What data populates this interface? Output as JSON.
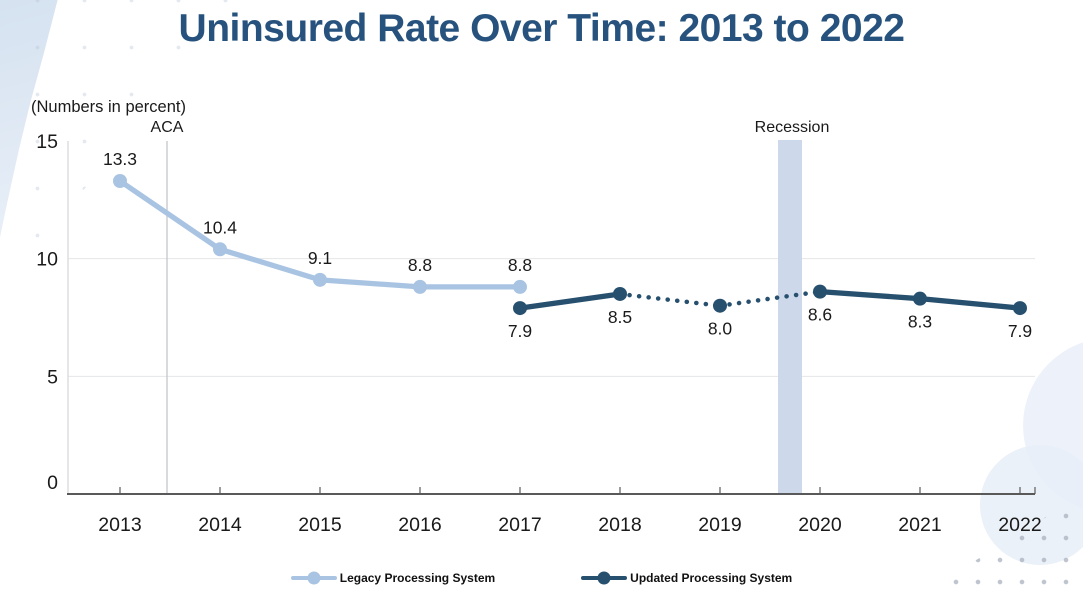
{
  "chart_data": {
    "type": "line",
    "title": "Uninsured Rate Over Time: 2013 to 2022",
    "units_note": "(Numbers in percent)",
    "x": [
      2013,
      2014,
      2015,
      2016,
      2017,
      2018,
      2019,
      2020,
      2021,
      2022
    ],
    "ylim": [
      0,
      15
    ],
    "yticks": [
      0,
      5,
      10,
      15
    ],
    "grid": "horizontal",
    "legend_position": "bottom",
    "series": [
      {
        "name": "Legacy Processing System",
        "color": "#a9c4e2",
        "x": [
          2013,
          2014,
          2015,
          2016,
          2017
        ],
        "values": [
          13.3,
          10.4,
          9.1,
          8.8,
          8.8
        ],
        "label_position": "above"
      },
      {
        "name": "Updated Processing System",
        "color": "#27506f",
        "x": [
          2017,
          2018,
          2019,
          2020,
          2021,
          2022
        ],
        "values": [
          7.9,
          8.5,
          8.0,
          8.6,
          8.3,
          7.9
        ],
        "label_position": "below",
        "dotted_segments": [
          [
            2018,
            2019
          ],
          [
            2019,
            2020
          ]
        ]
      }
    ],
    "annotations": [
      {
        "type": "vline",
        "label": "ACA",
        "x": 2013.47,
        "color": "#c3c7cc"
      },
      {
        "type": "band",
        "label": "Recession",
        "x0": 2019.58,
        "x1": 2019.82,
        "color": "#cdd9eb"
      }
    ]
  },
  "colors": {
    "title": "#26527d",
    "axis": "#595959",
    "gridline": "#e4e6e8",
    "text": "#1a1a1a"
  }
}
